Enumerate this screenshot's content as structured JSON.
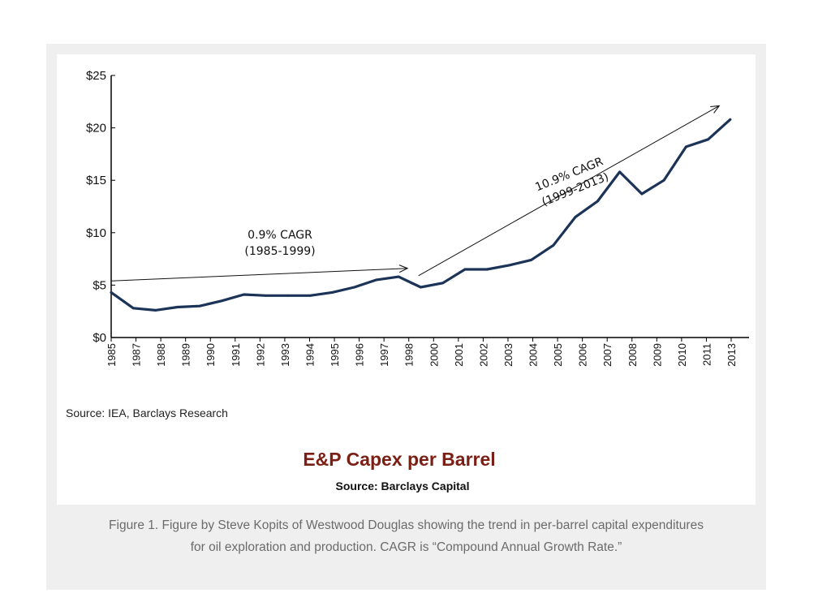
{
  "chart_data": {
    "type": "line",
    "title": "E&P Capex per Barrel",
    "subtitle": "Source: Barclays Capital",
    "source_note": "Source: IEA, Barclays Research",
    "xlabel": "",
    "ylabel": "",
    "ylim": [
      0,
      25
    ],
    "y_ticks": [
      "$0",
      "$5",
      "$10",
      "$15",
      "$20",
      "$25"
    ],
    "y_tick_values": [
      0,
      5,
      10,
      15,
      20,
      25
    ],
    "categories": [
      "1985",
      "1987",
      "1988",
      "1989",
      "1990",
      "1991",
      "1992",
      "1993",
      "1994",
      "1995",
      "1996",
      "1997",
      "1998",
      "2000",
      "2001",
      "2002",
      "2003",
      "2004",
      "2005",
      "2006",
      "2007",
      "2008",
      "2009",
      "2010",
      "2011",
      "2013"
    ],
    "series": [
      {
        "name": "",
        "color": "#1c3358",
        "x": [
          1985,
          1986,
          1987,
          1988,
          1989,
          1990,
          1991,
          1992,
          1993,
          1994,
          1995,
          1996,
          1997,
          1998,
          1999,
          2000,
          2001,
          2002,
          2003,
          2004,
          2005,
          2006,
          2007,
          2008,
          2009,
          2010,
          2011,
          2012,
          2013
        ],
        "values": [
          4.3,
          2.8,
          2.6,
          2.9,
          3.0,
          3.5,
          4.1,
          4.0,
          4.0,
          4.0,
          4.3,
          4.8,
          5.5,
          5.8,
          4.8,
          5.2,
          6.5,
          6.5,
          6.9,
          7.4,
          8.8,
          11.5,
          13.0,
          15.8,
          13.7,
          15.0,
          18.2,
          18.9,
          20.8
        ]
      }
    ],
    "annotations": [
      {
        "line1": "0.9% CAGR",
        "line2": "(1985-1999)",
        "arrow_from": [
          1985,
          5.4
        ],
        "arrow_to": [
          1998.4,
          6.6
        ]
      },
      {
        "line1": "10.9% CAGR",
        "line2": "(1999-2013)",
        "arrow_from": [
          1998.9,
          5.9
        ],
        "arrow_to": [
          2012.5,
          22.1
        ]
      }
    ],
    "grid": false,
    "legend": "none"
  },
  "caption": {
    "line1": "Figure 1. Figure by Steve Kopits of Westwood Douglas showing the trend in per-barrel capital expenditures",
    "line2": "for oil exploration and production. CAGR is “Compound Annual Growth Rate.”"
  }
}
